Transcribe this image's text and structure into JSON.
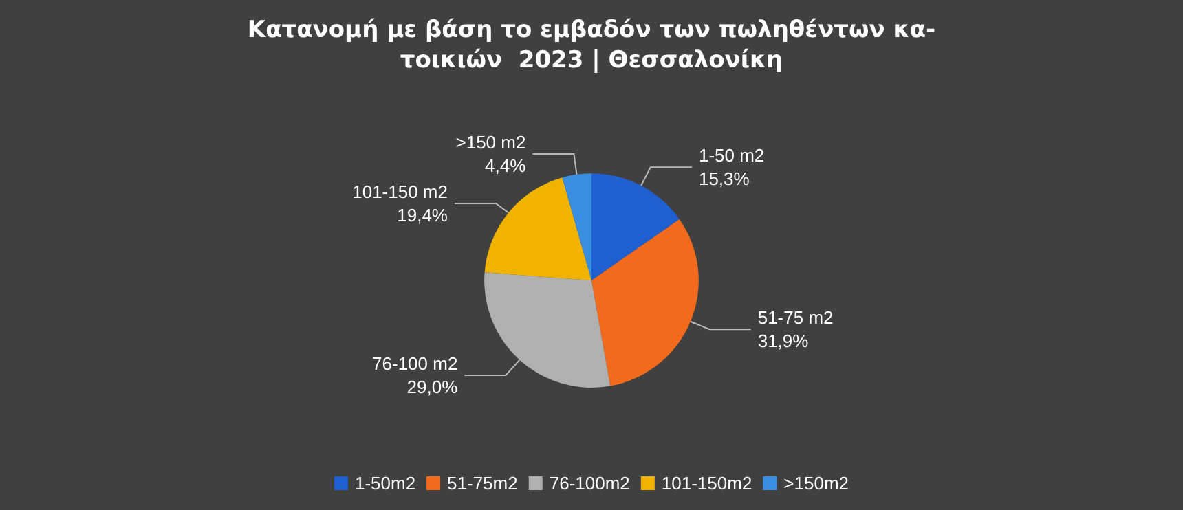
{
  "chart_data": {
    "type": "pie",
    "title": "Κατανομή με βάση το εμβαδόν των πωληθέντων κα-\nτοικιών  2023 | Θεσσαλονίκη",
    "categories": [
      "1-50m2",
      "51-75m2",
      "76-100m2",
      "101-150m2",
      ">150m2"
    ],
    "values": [
      15.3,
      31.9,
      29.0,
      19.4,
      4.4
    ],
    "value_labels": [
      "15,3%",
      "31,9%",
      "29,0%",
      "19,4%",
      "4,4%"
    ],
    "annotations": [
      "1-50 m2",
      "51-75 m2",
      "76-100 m2",
      "101-150 m2",
      ">150 m2"
    ],
    "colors": [
      "#1f5fd0",
      "#f26a1b",
      "#b0b0b0",
      "#f0b400",
      "#3a8ee0"
    ],
    "legend": "bottom"
  }
}
